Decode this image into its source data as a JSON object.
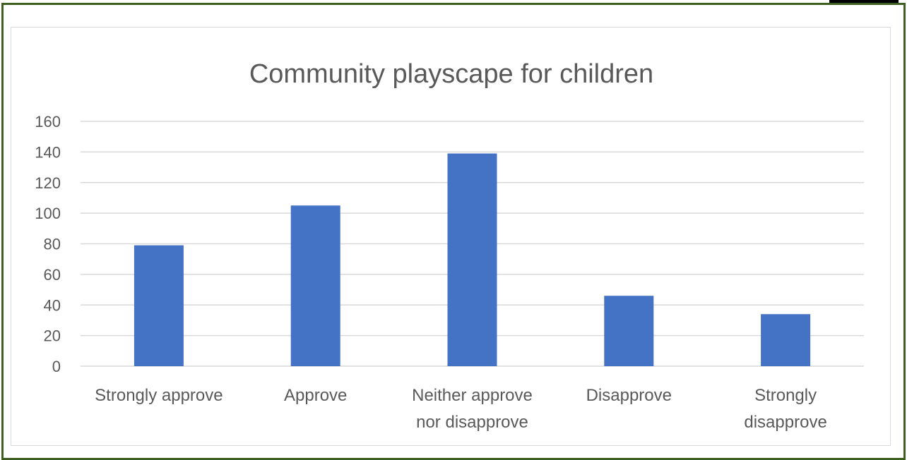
{
  "chart_data": {
    "type": "bar",
    "title": "Community playscape for children",
    "categories": [
      [
        "Strongly approve"
      ],
      [
        "Approve"
      ],
      [
        "Neither approve",
        "nor disapprove"
      ],
      [
        "Disapprove"
      ],
      [
        "Strongly",
        "disapprove"
      ]
    ],
    "values": [
      79,
      105,
      139,
      46,
      34
    ],
    "ylim": [
      0,
      160
    ],
    "yticks": [
      0,
      20,
      40,
      60,
      80,
      100,
      120,
      140,
      160
    ],
    "grid": true,
    "legend": "none",
    "colors": {
      "bar": "#4472c4",
      "grid": "#d9d9d9",
      "text": "#595959",
      "frame": "#3e5e22"
    }
  }
}
